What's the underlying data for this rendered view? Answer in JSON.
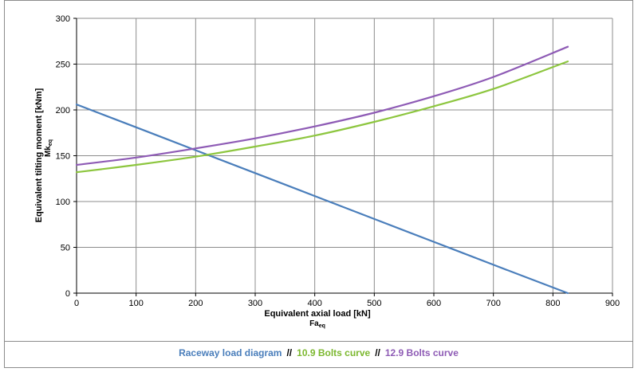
{
  "chart_data": {
    "type": "line",
    "xlabel": "Equivalent axial load [kN]",
    "xsub": {
      "base": "Fa",
      "sub": "eq"
    },
    "ylabel": "Equivalent tilting moment [kNm]",
    "ysub": {
      "base": "Mk",
      "sub": "eq"
    },
    "xlim": [
      0,
      900
    ],
    "ylim": [
      0,
      300
    ],
    "xticks": [
      0,
      100,
      200,
      300,
      400,
      500,
      600,
      700,
      800,
      900
    ],
    "yticks": [
      0,
      50,
      100,
      150,
      200,
      250,
      300
    ],
    "grid": true,
    "legend_position": "bottom",
    "series": [
      {
        "name": "Raceway load diagram",
        "color": "#4a7ebb",
        "x": [
          0,
          100,
          200,
          300,
          400,
          500,
          600,
          700,
          825
        ],
        "y": [
          206,
          181,
          156,
          131,
          106,
          81,
          56,
          31,
          0
        ]
      },
      {
        "name": "10.9 Bolts curve",
        "color": "#8dc63f",
        "x": [
          0,
          100,
          200,
          300,
          400,
          500,
          600,
          700,
          825
        ],
        "y": [
          132,
          140,
          149,
          160,
          172,
          187,
          204,
          223,
          253
        ]
      },
      {
        "name": "12.9 Bolts curve",
        "color": "#8e5bb5",
        "x": [
          0,
          100,
          200,
          300,
          400,
          500,
          600,
          700,
          825
        ],
        "y": [
          140,
          148,
          158,
          169,
          182,
          197,
          215,
          236,
          269
        ]
      }
    ],
    "legend_separator": "//"
  }
}
